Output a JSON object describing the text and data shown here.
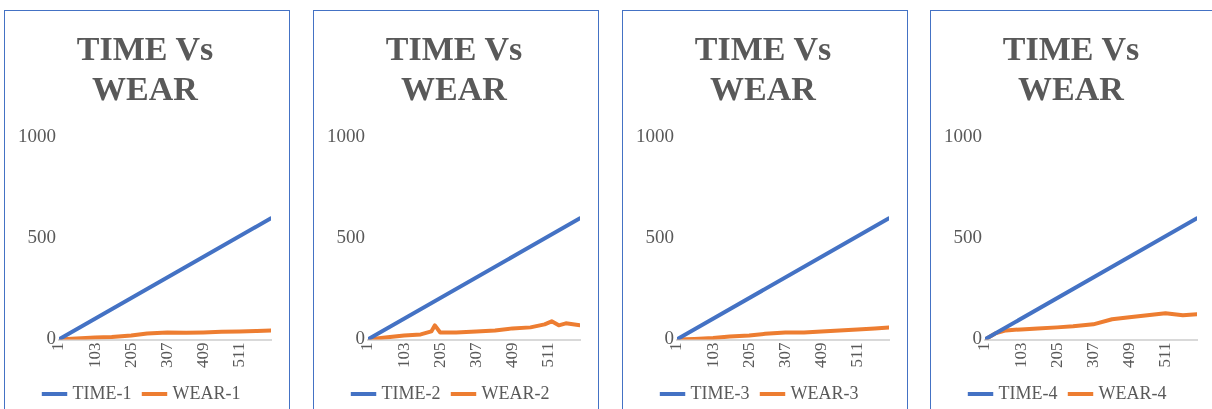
{
  "chart_data": [
    {
      "type": "line",
      "title": "TIME Vs WEAR",
      "xlim": [
        1,
        600
      ],
      "xticks": [
        1,
        103,
        205,
        307,
        409,
        511
      ],
      "ylim": [
        0,
        1000
      ],
      "yticks": [
        0,
        500,
        1000
      ],
      "grid": false,
      "legend": "bottom",
      "marker": "none",
      "line_style": "solid",
      "series": [
        {
          "name": "TIME-1",
          "color": "#4472c4",
          "x": [
            1,
            600
          ],
          "values": [
            1,
            600
          ]
        },
        {
          "name": "WEAR-1",
          "color": "#ed7d31",
          "x": [
            1,
            50,
            103,
            150,
            205,
            250,
            307,
            360,
            409,
            460,
            511,
            560,
            600
          ],
          "values": [
            0,
            5,
            10,
            12,
            20,
            30,
            35,
            33,
            35,
            38,
            40,
            42,
            45
          ]
        }
      ]
    },
    {
      "type": "line",
      "title": "TIME Vs WEAR",
      "xlim": [
        1,
        600
      ],
      "xticks": [
        1,
        103,
        205,
        307,
        409,
        511
      ],
      "ylim": [
        0,
        1000
      ],
      "yticks": [
        0,
        500,
        1000
      ],
      "grid": false,
      "legend": "bottom",
      "marker": "none",
      "line_style": "solid",
      "series": [
        {
          "name": "TIME-2",
          "color": "#4472c4",
          "x": [
            1,
            600
          ],
          "values": [
            1,
            600
          ]
        },
        {
          "name": "WEAR-2",
          "color": "#ed7d31",
          "x": [
            1,
            50,
            103,
            150,
            180,
            190,
            205,
            250,
            307,
            360,
            409,
            460,
            500,
            520,
            540,
            560,
            600
          ],
          "values": [
            0,
            10,
            20,
            25,
            40,
            70,
            35,
            35,
            40,
            45,
            55,
            60,
            75,
            90,
            70,
            80,
            70
          ]
        }
      ]
    },
    {
      "type": "line",
      "title": "TIME Vs WEAR",
      "xlim": [
        1,
        600
      ],
      "xticks": [
        1,
        103,
        205,
        307,
        409,
        511
      ],
      "ylim": [
        0,
        1000
      ],
      "yticks": [
        0,
        500,
        1000
      ],
      "grid": false,
      "legend": "bottom",
      "marker": "none",
      "line_style": "solid",
      "series": [
        {
          "name": "TIME-3",
          "color": "#4472c4",
          "x": [
            1,
            600
          ],
          "values": [
            1,
            600
          ]
        },
        {
          "name": "WEAR-3",
          "color": "#ed7d31",
          "x": [
            1,
            50,
            103,
            150,
            205,
            250,
            307,
            360,
            409,
            460,
            511,
            560,
            600
          ],
          "values": [
            0,
            3,
            8,
            15,
            20,
            28,
            35,
            35,
            40,
            45,
            50,
            55,
            60
          ]
        }
      ]
    },
    {
      "type": "line",
      "title": "TIME Vs WEAR",
      "xlim": [
        1,
        600
      ],
      "xticks": [
        1,
        103,
        205,
        307,
        409,
        511
      ],
      "ylim": [
        0,
        1000
      ],
      "yticks": [
        0,
        500,
        1000
      ],
      "grid": false,
      "legend": "bottom",
      "marker": "none",
      "line_style": "solid",
      "series": [
        {
          "name": "TIME-4",
          "color": "#4472c4",
          "x": [
            1,
            600
          ],
          "values": [
            1,
            600
          ]
        },
        {
          "name": "WEAR-4",
          "color": "#ed7d31",
          "x": [
            1,
            30,
            60,
            103,
            150,
            205,
            250,
            307,
            360,
            409,
            460,
            511,
            560,
            600
          ],
          "values": [
            0,
            30,
            45,
            50,
            55,
            60,
            65,
            75,
            100,
            110,
            120,
            130,
            120,
            125
          ]
        }
      ]
    }
  ]
}
